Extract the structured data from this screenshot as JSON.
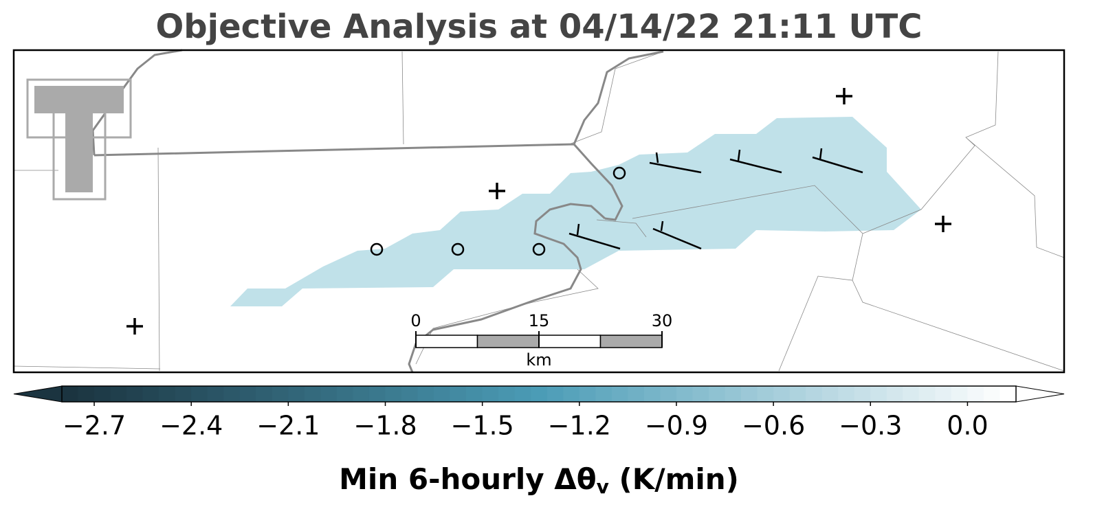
{
  "title": "Objective Analysis at 04/14/22 21:11 UTC",
  "colorbar": {
    "label": {
      "main": "Min 6-hourly Δθ",
      "sub": "v",
      "units": " (K/min)"
    },
    "lim": [
      -2.8,
      0.15
    ],
    "colormap": [
      "#1b3440",
      "#4b9cb6",
      "#ffffff"
    ],
    "ticks": [
      {
        "value": -2.7,
        "label": "−2.7"
      },
      {
        "value": -2.4,
        "label": "−2.4"
      },
      {
        "value": -2.1,
        "label": "−2.1"
      },
      {
        "value": -1.8,
        "label": "−1.8"
      },
      {
        "value": -1.5,
        "label": "−1.5"
      },
      {
        "value": -1.2,
        "label": "−1.2"
      },
      {
        "value": -0.9,
        "label": "−0.9"
      },
      {
        "value": -0.6,
        "label": "−0.6"
      },
      {
        "value": -0.3,
        "label": "−0.3"
      },
      {
        "value": 0,
        "label": "0.0"
      }
    ]
  },
  "scalebar": {
    "lim": [
      0,
      30
    ],
    "ticks": [
      0,
      15,
      30
    ],
    "unit": "km"
  }
}
